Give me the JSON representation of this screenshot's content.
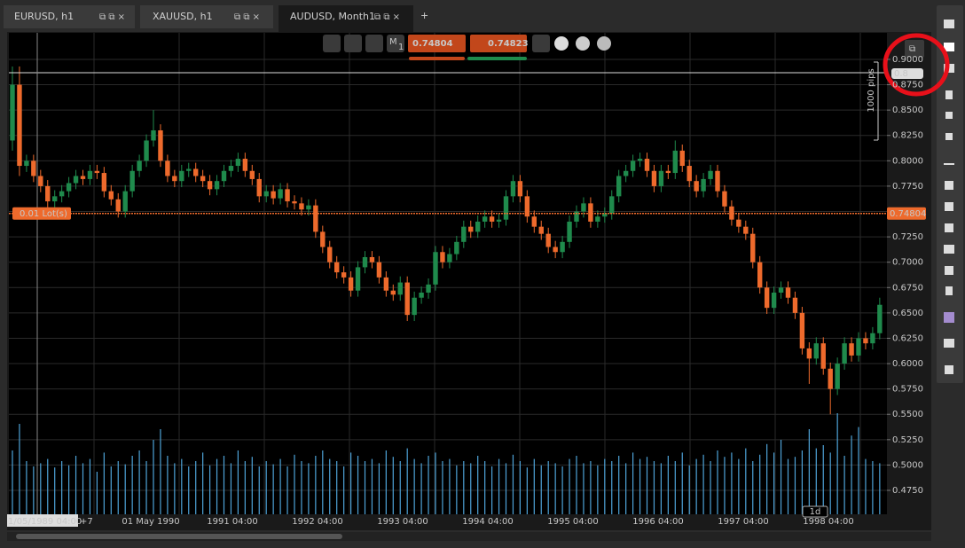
{
  "tabs": [
    "EURUSD, h1",
    "XAUUSD, h1",
    "AUDUSD, Month1"
  ],
  "new_tab": "+",
  "timeframe_icon": {
    "letter": "M",
    "number": "1"
  },
  "position_label": "0.01 Lot(s)",
  "pips_label": "1000 pips",
  "crosshair_label": "0.8",
  "cursor_time": "1/05/1989 04:00",
  "time_offset": "+7",
  "zoom_label": "1d",
  "chart_data": {
    "type": "candlestick",
    "up_color": "#1f8a4c",
    "down_color": "#ee6a2c",
    "grid": true,
    "current_price": {
      "value": 0.74804,
      "label": "0.74804"
    },
    "buy_price": "0.74823",
    "x_labels": [
      "01 May 1990",
      "1991 04:00",
      "1992 04:00",
      "1993 04:00",
      "1994 04:00",
      "1995 04:00",
      "1996 04:00",
      "1997 04:00",
      "1998 04:00"
    ],
    "ylim": [
      0.4514,
      0.9262
    ],
    "yticks": [
      {
        "value": 0.9,
        "label": "0.9000"
      },
      {
        "value": 0.875,
        "label": "0.8750"
      },
      {
        "value": 0.85,
        "label": "0.8500"
      },
      {
        "value": 0.825,
        "label": "0.8250"
      },
      {
        "value": 0.8,
        "label": "0.8000"
      },
      {
        "value": 0.775,
        "label": "0.7750"
      },
      {
        "value": 0.75,
        "label": "0.7500"
      },
      {
        "value": 0.725,
        "label": "0.7250"
      },
      {
        "value": 0.7,
        "label": "0.7000"
      },
      {
        "value": 0.675,
        "label": "0.6750"
      },
      {
        "value": 0.65,
        "label": "0.6500"
      },
      {
        "value": 0.625,
        "label": "0.6250"
      },
      {
        "value": 0.6,
        "label": "0.6000"
      },
      {
        "value": 0.575,
        "label": "0.5750"
      },
      {
        "value": 0.55,
        "label": "0.5500"
      },
      {
        "value": 0.525,
        "label": "0.5250"
      },
      {
        "value": 0.5,
        "label": "0.5000"
      },
      {
        "value": 0.475,
        "label": "0.4750"
      }
    ],
    "volume_color": "#4ea3d8",
    "volume_lim": [
      0,
      100
    ],
    "candles": [
      [
        0.82,
        0.893,
        0.81,
        0.875
      ],
      [
        0.875,
        0.893,
        0.785,
        0.795
      ],
      [
        0.795,
        0.806,
        0.789,
        0.8
      ],
      [
        0.8,
        0.806,
        0.779,
        0.785
      ],
      [
        0.785,
        0.791,
        0.769,
        0.775
      ],
      [
        0.775,
        0.781,
        0.754,
        0.76
      ],
      [
        0.76,
        0.771,
        0.754,
        0.765
      ],
      [
        0.765,
        0.776,
        0.759,
        0.77
      ],
      [
        0.77,
        0.784,
        0.764,
        0.778
      ],
      [
        0.778,
        0.791,
        0.772,
        0.785
      ],
      [
        0.785,
        0.791,
        0.776,
        0.782
      ],
      [
        0.782,
        0.796,
        0.776,
        0.79
      ],
      [
        0.79,
        0.796,
        0.782,
        0.788
      ],
      [
        0.788,
        0.794,
        0.764,
        0.77
      ],
      [
        0.77,
        0.776,
        0.756,
        0.762
      ],
      [
        0.762,
        0.768,
        0.744,
        0.75
      ],
      [
        0.75,
        0.776,
        0.744,
        0.77
      ],
      [
        0.77,
        0.796,
        0.764,
        0.79
      ],
      [
        0.79,
        0.806,
        0.784,
        0.8
      ],
      [
        0.8,
        0.826,
        0.794,
        0.82
      ],
      [
        0.82,
        0.85,
        0.814,
        0.83
      ],
      [
        0.83,
        0.836,
        0.794,
        0.8
      ],
      [
        0.8,
        0.806,
        0.779,
        0.785
      ],
      [
        0.785,
        0.791,
        0.774,
        0.78
      ],
      [
        0.78,
        0.796,
        0.774,
        0.79
      ],
      [
        0.79,
        0.798,
        0.784,
        0.792
      ],
      [
        0.792,
        0.798,
        0.779,
        0.785
      ],
      [
        0.785,
        0.791,
        0.774,
        0.78
      ],
      [
        0.78,
        0.786,
        0.766,
        0.772
      ],
      [
        0.772,
        0.786,
        0.766,
        0.78
      ],
      [
        0.78,
        0.796,
        0.774,
        0.79
      ],
      [
        0.79,
        0.801,
        0.784,
        0.795
      ],
      [
        0.795,
        0.808,
        0.789,
        0.802
      ],
      [
        0.802,
        0.808,
        0.784,
        0.79
      ],
      [
        0.79,
        0.796,
        0.776,
        0.782
      ],
      [
        0.782,
        0.788,
        0.759,
        0.765
      ],
      [
        0.765,
        0.776,
        0.759,
        0.77
      ],
      [
        0.77,
        0.776,
        0.757,
        0.763
      ],
      [
        0.763,
        0.778,
        0.757,
        0.772
      ],
      [
        0.772,
        0.778,
        0.754,
        0.76
      ],
      [
        0.76,
        0.766,
        0.752,
        0.758
      ],
      [
        0.758,
        0.764,
        0.746,
        0.752
      ],
      [
        0.752,
        0.762,
        0.746,
        0.756
      ],
      [
        0.756,
        0.762,
        0.724,
        0.73
      ],
      [
        0.73,
        0.736,
        0.709,
        0.715
      ],
      [
        0.715,
        0.721,
        0.694,
        0.7
      ],
      [
        0.7,
        0.706,
        0.684,
        0.69
      ],
      [
        0.69,
        0.696,
        0.679,
        0.685
      ],
      [
        0.685,
        0.691,
        0.666,
        0.672
      ],
      [
        0.672,
        0.701,
        0.666,
        0.695
      ],
      [
        0.695,
        0.711,
        0.689,
        0.705
      ],
      [
        0.705,
        0.711,
        0.694,
        0.7
      ],
      [
        0.7,
        0.706,
        0.679,
        0.685
      ],
      [
        0.685,
        0.691,
        0.666,
        0.672
      ],
      [
        0.672,
        0.678,
        0.662,
        0.668
      ],
      [
        0.668,
        0.686,
        0.662,
        0.68
      ],
      [
        0.68,
        0.686,
        0.642,
        0.648
      ],
      [
        0.648,
        0.671,
        0.642,
        0.665
      ],
      [
        0.665,
        0.676,
        0.659,
        0.67
      ],
      [
        0.67,
        0.684,
        0.664,
        0.678
      ],
      [
        0.678,
        0.716,
        0.672,
        0.71
      ],
      [
        0.71,
        0.716,
        0.694,
        0.7
      ],
      [
        0.7,
        0.714,
        0.694,
        0.708
      ],
      [
        0.708,
        0.726,
        0.702,
        0.72
      ],
      [
        0.72,
        0.741,
        0.714,
        0.735
      ],
      [
        0.735,
        0.741,
        0.724,
        0.73
      ],
      [
        0.73,
        0.746,
        0.724,
        0.74
      ],
      [
        0.74,
        0.751,
        0.734,
        0.745
      ],
      [
        0.745,
        0.751,
        0.734,
        0.74
      ],
      [
        0.74,
        0.748,
        0.734,
        0.742
      ],
      [
        0.742,
        0.771,
        0.736,
        0.765
      ],
      [
        0.765,
        0.786,
        0.759,
        0.78
      ],
      [
        0.78,
        0.786,
        0.759,
        0.765
      ],
      [
        0.765,
        0.771,
        0.739,
        0.745
      ],
      [
        0.745,
        0.751,
        0.729,
        0.735
      ],
      [
        0.735,
        0.741,
        0.722,
        0.728
      ],
      [
        0.728,
        0.734,
        0.709,
        0.715
      ],
      [
        0.715,
        0.721,
        0.704,
        0.71
      ],
      [
        0.71,
        0.726,
        0.704,
        0.72
      ],
      [
        0.72,
        0.746,
        0.714,
        0.74
      ],
      [
        0.74,
        0.756,
        0.734,
        0.75
      ],
      [
        0.75,
        0.764,
        0.744,
        0.758
      ],
      [
        0.758,
        0.764,
        0.734,
        0.74
      ],
      [
        0.74,
        0.751,
        0.734,
        0.745
      ],
      [
        0.745,
        0.754,
        0.739,
        0.748
      ],
      [
        0.748,
        0.771,
        0.742,
        0.765
      ],
      [
        0.765,
        0.791,
        0.759,
        0.785
      ],
      [
        0.785,
        0.796,
        0.779,
        0.79
      ],
      [
        0.79,
        0.806,
        0.784,
        0.8
      ],
      [
        0.8,
        0.808,
        0.794,
        0.802
      ],
      [
        0.802,
        0.808,
        0.784,
        0.79
      ],
      [
        0.79,
        0.796,
        0.769,
        0.775
      ],
      [
        0.775,
        0.796,
        0.769,
        0.79
      ],
      [
        0.79,
        0.796,
        0.782,
        0.788
      ],
      [
        0.788,
        0.82,
        0.782,
        0.81
      ],
      [
        0.81,
        0.816,
        0.789,
        0.795
      ],
      [
        0.795,
        0.801,
        0.774,
        0.78
      ],
      [
        0.78,
        0.786,
        0.764,
        0.77
      ],
      [
        0.77,
        0.788,
        0.764,
        0.782
      ],
      [
        0.782,
        0.796,
        0.776,
        0.79
      ],
      [
        0.79,
        0.796,
        0.764,
        0.77
      ],
      [
        0.77,
        0.776,
        0.749,
        0.755
      ],
      [
        0.755,
        0.761,
        0.736,
        0.742
      ],
      [
        0.742,
        0.748,
        0.729,
        0.735
      ],
      [
        0.735,
        0.741,
        0.722,
        0.728
      ],
      [
        0.728,
        0.734,
        0.694,
        0.7
      ],
      [
        0.7,
        0.706,
        0.669,
        0.675
      ],
      [
        0.675,
        0.681,
        0.649,
        0.655
      ],
      [
        0.655,
        0.676,
        0.649,
        0.67
      ],
      [
        0.67,
        0.681,
        0.664,
        0.675
      ],
      [
        0.675,
        0.681,
        0.659,
        0.665
      ],
      [
        0.665,
        0.671,
        0.644,
        0.65
      ],
      [
        0.65,
        0.656,
        0.609,
        0.615
      ],
      [
        0.615,
        0.621,
        0.58,
        0.605
      ],
      [
        0.605,
        0.626,
        0.599,
        0.62
      ],
      [
        0.62,
        0.626,
        0.589,
        0.595
      ],
      [
        0.595,
        0.601,
        0.55,
        0.575
      ],
      [
        0.575,
        0.606,
        0.569,
        0.6
      ],
      [
        0.6,
        0.626,
        0.594,
        0.62
      ],
      [
        0.62,
        0.626,
        0.602,
        0.608
      ],
      [
        0.608,
        0.631,
        0.602,
        0.625
      ],
      [
        0.625,
        0.631,
        0.614,
        0.62
      ],
      [
        0.62,
        0.636,
        0.614,
        0.63
      ],
      [
        0.63,
        0.665,
        0.624,
        0.658
      ]
    ],
    "volume": [
      60,
      85,
      50,
      45,
      48,
      52,
      44,
      50,
      46,
      55,
      48,
      52,
      40,
      58,
      45,
      50,
      47,
      55,
      60,
      50,
      70,
      80,
      55,
      48,
      52,
      45,
      50,
      58,
      46,
      52,
      55,
      48,
      60,
      50,
      54,
      45,
      50,
      47,
      52,
      45,
      56,
      50,
      48,
      55,
      60,
      52,
      50,
      45,
      58,
      55,
      50,
      52,
      48,
      60,
      54,
      50,
      62,
      52,
      48,
      55,
      58,
      50,
      52,
      46,
      50,
      48,
      55,
      50,
      45,
      52,
      48,
      56,
      50,
      44,
      52,
      46,
      50,
      48,
      45,
      52,
      55,
      48,
      50,
      46,
      52,
      50,
      55,
      48,
      58,
      52,
      54,
      50,
      48,
      55,
      50,
      58,
      46,
      52,
      56,
      50,
      60,
      54,
      58,
      52,
      62,
      50,
      56,
      66,
      58,
      70,
      52,
      54,
      60,
      80,
      62,
      65,
      58,
      95,
      55,
      74,
      82,
      52,
      50,
      48
    ]
  }
}
